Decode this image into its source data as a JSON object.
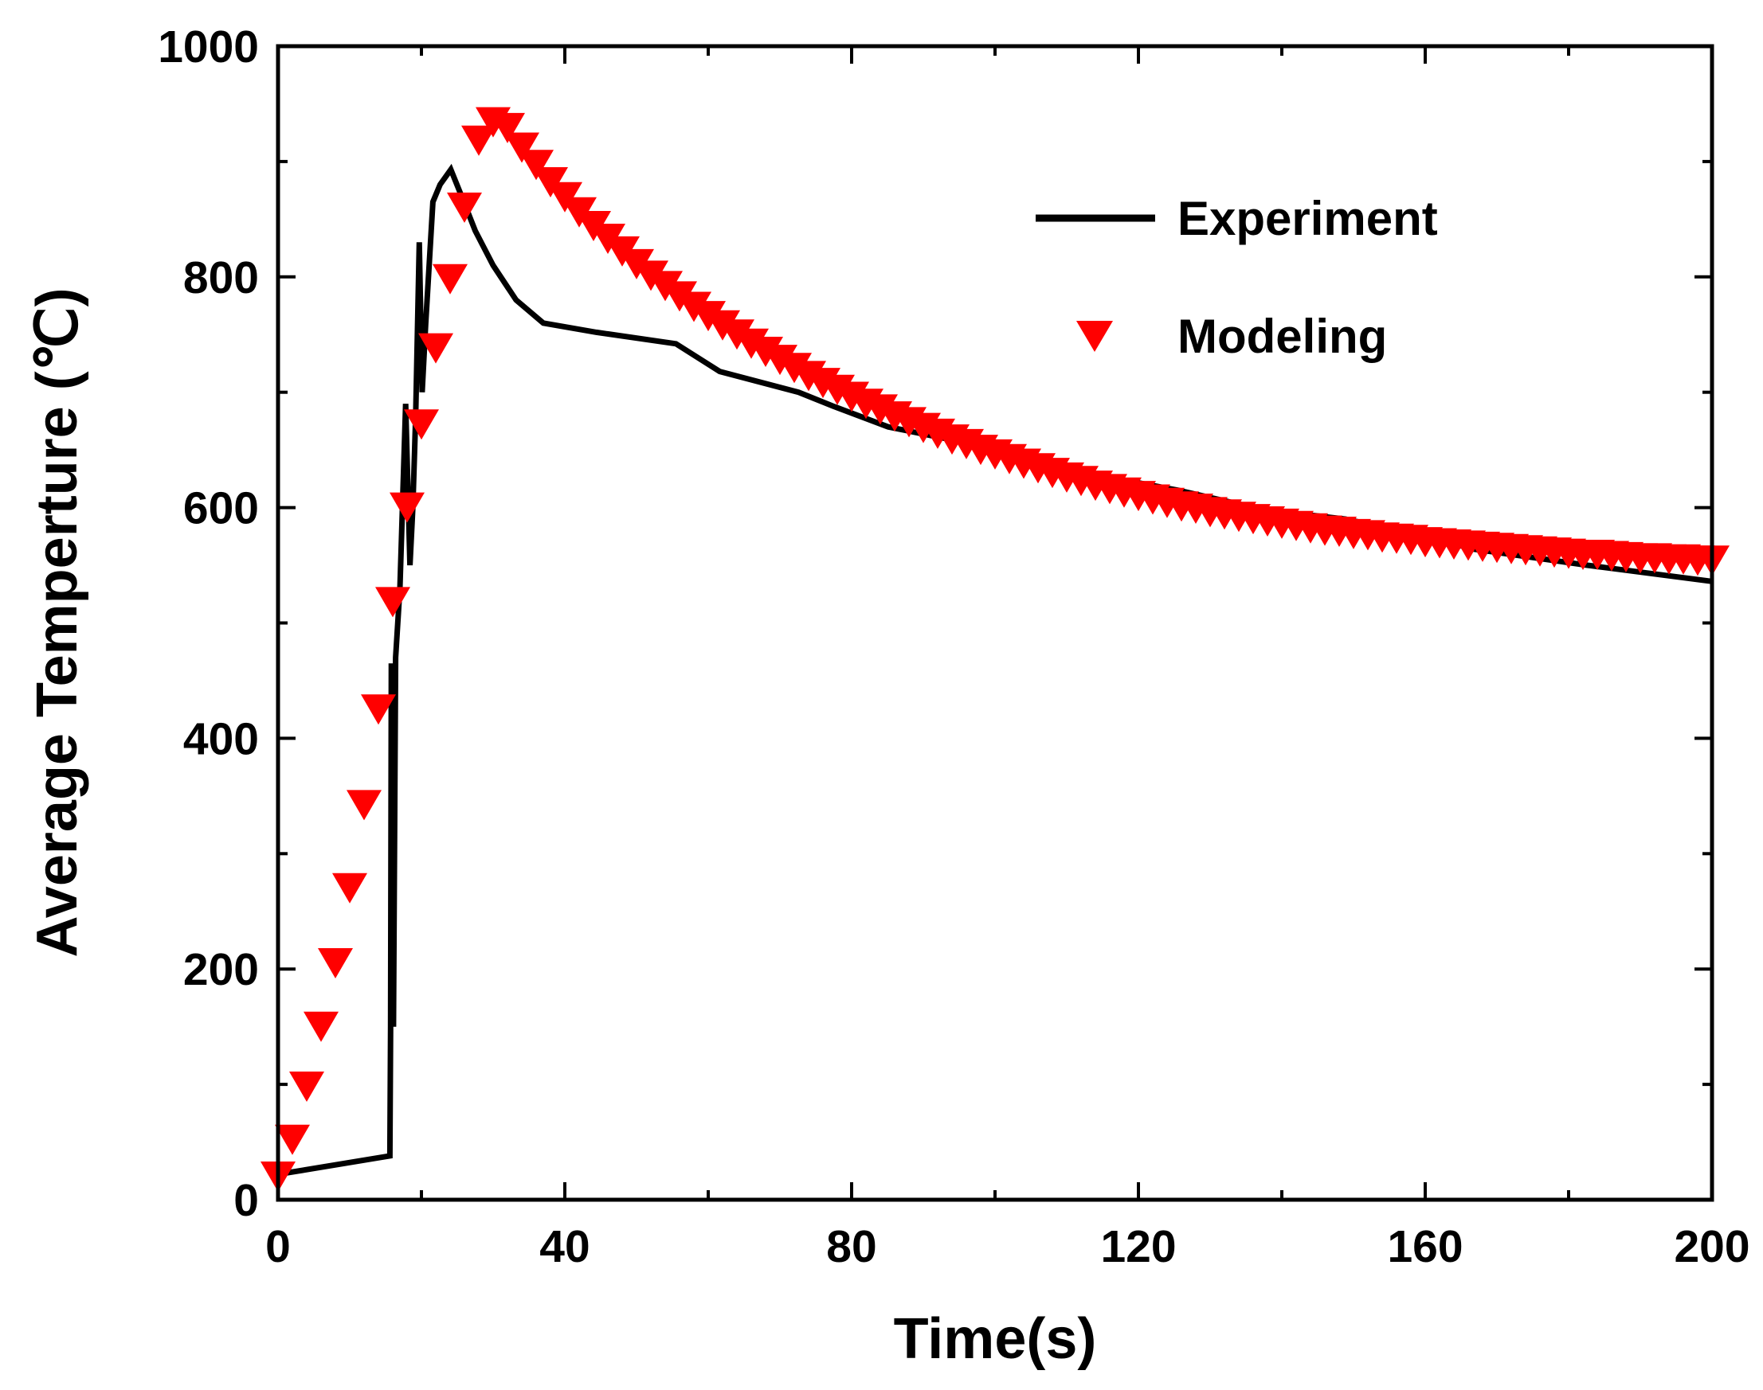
{
  "chart_data": {
    "type": "line",
    "title": "",
    "xlabel": "Time(s)",
    "ylabel": "Average Temperture (℃)",
    "xlim": [
      0,
      200
    ],
    "ylim": [
      0,
      1000
    ],
    "xticks": [
      0,
      40,
      80,
      120,
      160,
      200
    ],
    "yticks": [
      0,
      200,
      400,
      600,
      800,
      1000
    ],
    "xtick_labels": [
      "0",
      "40",
      "80",
      "120",
      "160",
      "200"
    ],
    "ytick_labels": [
      "0",
      "200",
      "400",
      "600",
      "800",
      "1000"
    ],
    "grid": false,
    "legend_position": "top-right",
    "series": [
      {
        "name": "Experiment",
        "style": "line",
        "color": "#000000",
        "x": [
          0,
          15.6,
          15.7,
          15.8,
          16.1,
          16.4,
          17.0,
          17.8,
          18.4,
          18.8,
          19.2,
          19.7,
          20.1,
          20.6,
          21.6,
          22.6,
          24.1,
          25.6,
          27.5,
          30.0,
          33.2,
          37.0,
          44.4,
          55.5,
          61.6,
          72.6,
          77.4,
          85.1,
          100.9,
          112.6,
          125.6,
          137.6,
          148.9,
          160.0,
          166.8,
          182.6,
          200
        ],
        "y": [
          22,
          38,
          150,
          465,
          150,
          470,
          530,
          690,
          550,
          600,
          680,
          830,
          700,
          760,
          865,
          880,
          893,
          870,
          840,
          810,
          780,
          760,
          752,
          742,
          718,
          700,
          688,
          670,
          650,
          630,
          615,
          598,
          590,
          575,
          564,
          550,
          536
        ]
      },
      {
        "name": "Modeling",
        "style": "marker",
        "marker": "triangle-down",
        "color": "#ff0000",
        "x": [
          0,
          2,
          4,
          6,
          8,
          10,
          12,
          14,
          16,
          18,
          20,
          22,
          24,
          26,
          28,
          30,
          32,
          34,
          36,
          38,
          40,
          42,
          44,
          46,
          48,
          50,
          52,
          54,
          56,
          58,
          60,
          62,
          64,
          66,
          68,
          70,
          72,
          74,
          76,
          78,
          80,
          82,
          84,
          86,
          88,
          90,
          92,
          94,
          96,
          98,
          100,
          102,
          104,
          106,
          108,
          110,
          112,
          114,
          116,
          118,
          120,
          122,
          124,
          126,
          128,
          130,
          132,
          134,
          136,
          138,
          140,
          142,
          144,
          146,
          148,
          150,
          152,
          154,
          156,
          158,
          160,
          162,
          164,
          166,
          168,
          170,
          172,
          174,
          176,
          178,
          180,
          182,
          184,
          186,
          188,
          190,
          192,
          194,
          196,
          198,
          200
        ],
        "y": [
          20,
          52,
          98,
          150,
          205,
          270,
          342,
          425,
          518,
          600,
          672,
          738,
          798,
          860,
          918,
          934,
          929,
          912,
          897,
          882,
          869,
          856,
          844,
          833,
          822,
          811,
          801,
          792,
          783,
          774,
          766,
          758,
          750,
          742,
          735,
          728,
          721,
          714,
          708,
          702,
          696,
          690,
          685,
          679,
          674,
          669,
          664,
          659,
          655,
          650,
          646,
          642,
          638,
          634,
          630,
          626,
          623,
          619,
          616,
          613,
          610,
          607,
          604,
          601,
          599,
          596,
          594,
          592,
          590,
          588,
          586,
          584,
          582,
          580,
          579,
          577,
          576,
          574,
          573,
          572,
          570,
          569,
          568,
          567,
          566,
          565,
          564,
          563,
          562,
          561,
          560,
          559,
          559,
          558,
          557,
          556,
          556,
          555,
          555,
          554,
          554
        ]
      }
    ]
  }
}
